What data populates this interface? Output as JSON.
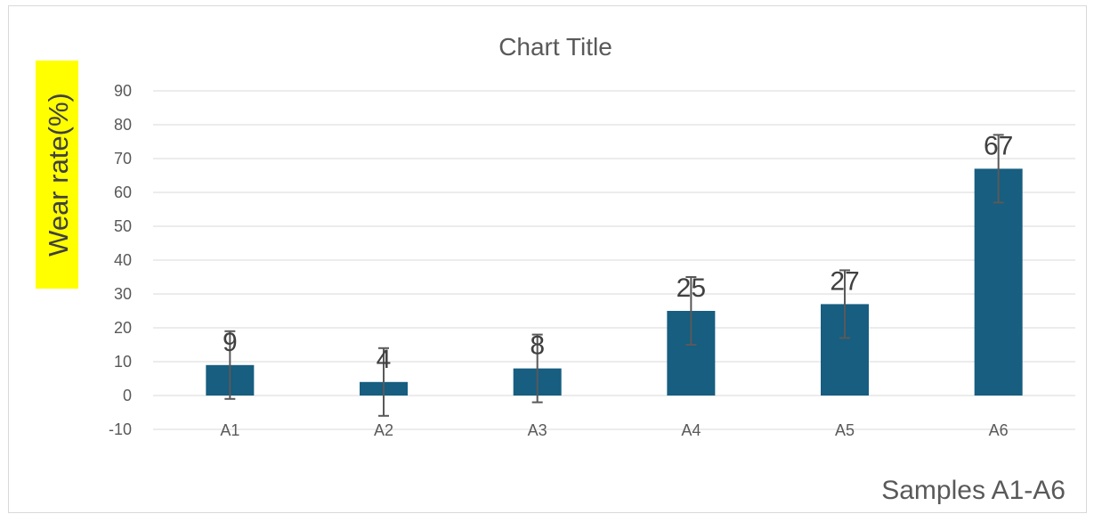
{
  "chart_data": {
    "type": "bar",
    "title": "Chart Title",
    "xlabel": "Samples A1-A6",
    "ylabel": "Wear rate(%)",
    "categories": [
      "A1",
      "A2",
      "A3",
      "A4",
      "A5",
      "A6"
    ],
    "values": [
      9,
      4,
      8,
      25,
      27,
      67
    ],
    "error_bars": [
      10,
      10,
      10,
      10,
      10,
      10
    ],
    "data_labels": [
      "9",
      "4",
      "8",
      "25",
      "27",
      "67"
    ],
    "yticks": [
      "-10",
      "0",
      "10",
      "20",
      "30",
      "40",
      "50",
      "60",
      "70",
      "80",
      "90"
    ],
    "ylim": [
      -10,
      90
    ],
    "grid": true,
    "legend": "none",
    "colors": {
      "bar": "#175e80",
      "error_bar": "#595959",
      "grid": "#d9d9d9",
      "text": "#595959",
      "data_label": "#404040",
      "ylabel_highlight": "#ffff00"
    }
  }
}
